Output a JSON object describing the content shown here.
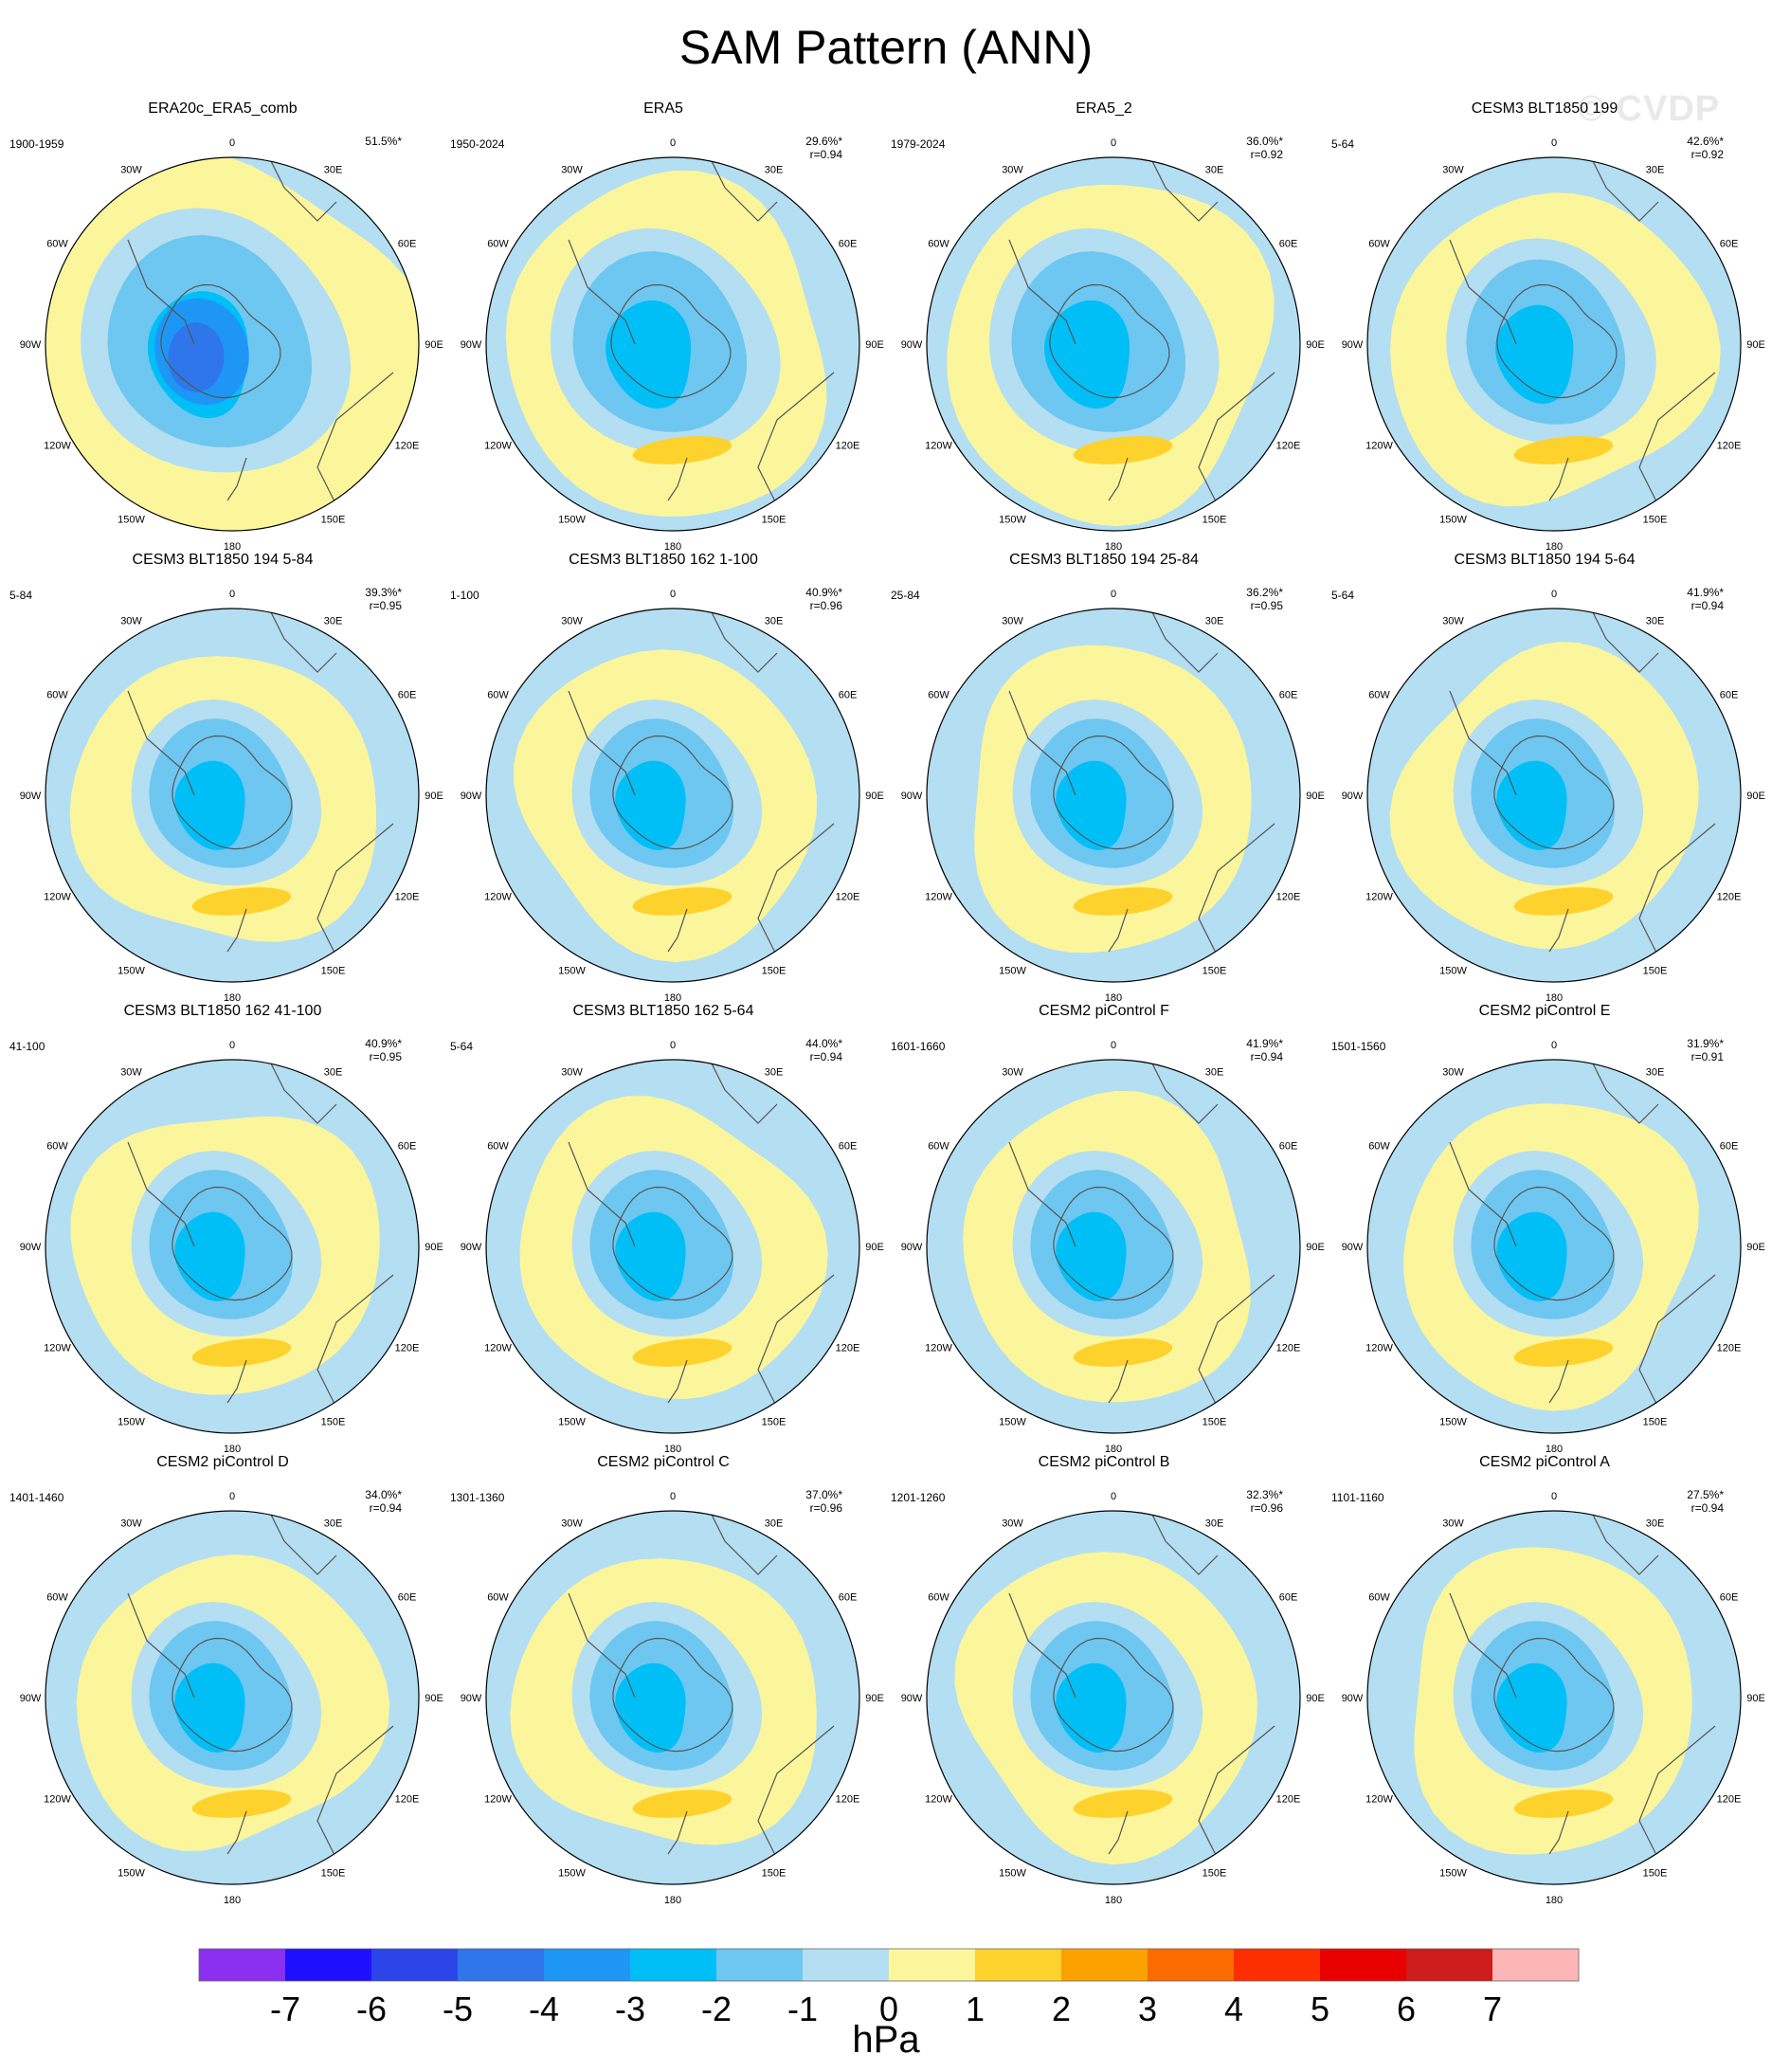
{
  "title": "SAM Pattern (ANN)",
  "watermark": "© CVDP",
  "lon_labels": [
    "0",
    "30E",
    "60E",
    "90E",
    "120E",
    "150E",
    "180",
    "150W",
    "120W",
    "90W",
    "60W",
    "30W"
  ],
  "colors": {
    "-7": "#8b2ff0",
    "-6": "#1f0fff",
    "-5": "#2b45e8",
    "-4": "#2f76ea",
    "-3": "#1e96f5",
    "-2": "#00bff7",
    "-1": "#6ec7f0",
    "0": "#b4def2",
    "1": "#fbf69c",
    "2": "#fdd22c",
    "3": "#fca200",
    "4": "#fb6b00",
    "5": "#fd2e00",
    "6": "#e80000",
    "7": "#cc1c1c",
    "8": "#fdb5b5"
  },
  "panels": [
    {
      "title": "ERA20c_ERA5_comb",
      "years": "1900-1959",
      "pct": "51.5%*",
      "r": ""
    },
    {
      "title": "ERA5",
      "years": "1950-2024",
      "pct": "29.6%*",
      "r": "r=0.94"
    },
    {
      "title": "ERA5_2",
      "years": "1979-2024",
      "pct": "36.0%*",
      "r": "r=0.92"
    },
    {
      "title": "CESM3 BLT1850 199",
      "years": "5-64",
      "pct": "42.6%*",
      "r": "r=0.92"
    },
    {
      "title": "CESM3 BLT1850 194 5-84",
      "years": "5-84",
      "pct": "39.3%*",
      "r": "r=0.95"
    },
    {
      "title": "CESM3 BLT1850 162 1-100",
      "years": "1-100",
      "pct": "40.9%*",
      "r": "r=0.96"
    },
    {
      "title": "CESM3 BLT1850 194 25-84",
      "years": "25-84",
      "pct": "36.2%*",
      "r": "r=0.95"
    },
    {
      "title": "CESM3 BLT1850 194 5-64",
      "years": "5-64",
      "pct": "41.9%*",
      "r": "r=0.94"
    },
    {
      "title": "CESM3 BLT1850 162 41-100",
      "years": "41-100",
      "pct": "40.9%*",
      "r": "r=0.95"
    },
    {
      "title": "CESM3 BLT1850 162 5-64",
      "years": "5-64",
      "pct": "44.0%*",
      "r": "r=0.94"
    },
    {
      "title": "CESM2 piControl F",
      "years": "1601-1660",
      "pct": "41.9%*",
      "r": "r=0.94"
    },
    {
      "title": "CESM2 piControl E",
      "years": "1501-1560",
      "pct": "31.9%*",
      "r": "r=0.91"
    },
    {
      "title": "CESM2 piControl D",
      "years": "1401-1460",
      "pct": "34.0%*",
      "r": "r=0.94"
    },
    {
      "title": "CESM2 piControl C",
      "years": "1301-1360",
      "pct": "37.0%*",
      "r": "r=0.96"
    },
    {
      "title": "CESM2 piControl B",
      "years": "1201-1260",
      "pct": "32.3%*",
      "r": "r=0.96"
    },
    {
      "title": "CESM2 piControl A",
      "years": "1101-1160",
      "pct": "27.5%*",
      "r": "r=0.94"
    }
  ],
  "colorbar": {
    "levels": [
      "-7",
      "-6",
      "-5",
      "-4",
      "-3",
      "-2",
      "-1",
      "0",
      "1",
      "2",
      "3",
      "4",
      "5",
      "6",
      "7"
    ],
    "units": "hPa"
  }
}
